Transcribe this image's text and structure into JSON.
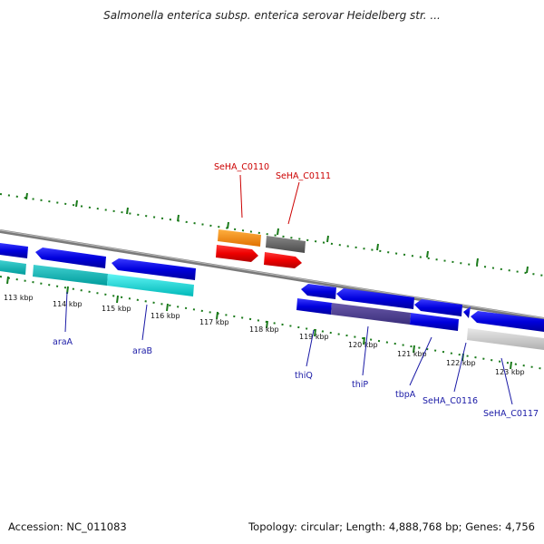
{
  "header": {
    "title": "Salmonella enterica subsp. enterica serovar Heidelberg str. ..."
  },
  "footer": {
    "accession": "Accession: NC_011083",
    "summary": "Topology: circular; Length: 4,888,768 bp; Genes: 4,756"
  },
  "scale": {
    "tick_labels": [
      "113 kbp",
      "114 kbp",
      "115 kbp",
      "116 kbp",
      "117 kbp",
      "118 kbp",
      "119 kbp",
      "120 kbp",
      "121 kbp",
      "122 kbp",
      "123 kbp"
    ]
  },
  "genes": {
    "labeled_top": [
      "SeHA_C0110",
      "SeHA_C0111"
    ],
    "labeled_bottom": [
      "araA",
      "araB",
      "thiQ",
      "thiP",
      "tbpA",
      "SeHA_C0116",
      "SeHA_C0117"
    ]
  },
  "colors": {
    "backbone": "#808080",
    "forward_cds": "#ee0000",
    "reverse_cds": "#0000dd",
    "highlight_orange": "#ff8800",
    "highlight_gray": "#606060",
    "cyan_track": "#00d8d8",
    "purple_track": "#55449a",
    "silver_track": "#c8c8c8",
    "scale_ticks": "#1a7a1a",
    "label_red": "#cc0000",
    "label_blue": "#1a1aa6"
  },
  "icons": {
    "gene_arrow": "arrow-shape"
  }
}
